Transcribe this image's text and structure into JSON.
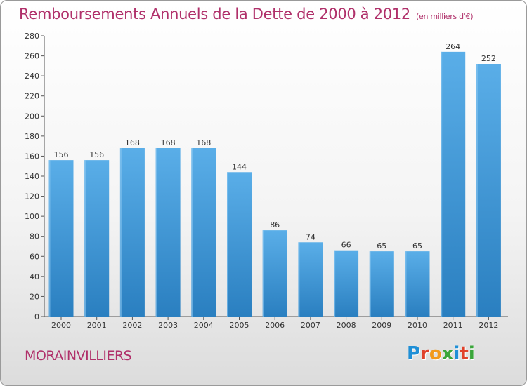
{
  "header": {
    "title": "Remboursements Annuels de la Dette de 2000 à 2012",
    "subtitle": "(en milliers d'€)"
  },
  "footer": {
    "commune": "MORAINVILLIERS"
  },
  "logo": {
    "letters": [
      {
        "ch": "P",
        "color": "#1f8fd6"
      },
      {
        "ch": "r",
        "color": "#e0412b"
      },
      {
        "ch": "o",
        "color": "#f29a1a"
      },
      {
        "ch": "x",
        "color": "#3aa63a"
      },
      {
        "ch": "i",
        "color": "#1f8fd6"
      },
      {
        "ch": "t",
        "color": "#e0412b"
      },
      {
        "ch": "i",
        "color": "#3aa63a"
      }
    ]
  },
  "colors": {
    "title": "#b0306a",
    "bar_top": "#5aaee8",
    "bar_bottom": "#2a7fc0"
  },
  "chart_data": {
    "type": "bar",
    "title": "Remboursements Annuels de la Dette de 2000 à 2012",
    "subtitle": "(en milliers d'€)",
    "xlabel": "",
    "ylabel": "",
    "categories": [
      "2000",
      "2001",
      "2002",
      "2003",
      "2004",
      "2005",
      "2006",
      "2007",
      "2008",
      "2009",
      "2010",
      "2011",
      "2012"
    ],
    "values": [
      156,
      156,
      168,
      168,
      168,
      144,
      86,
      74,
      66,
      65,
      65,
      264,
      252
    ],
    "ylim": [
      0,
      280
    ],
    "yticks": [
      0,
      20,
      40,
      60,
      80,
      100,
      120,
      140,
      160,
      180,
      200,
      220,
      240,
      260,
      280
    ],
    "grid": false,
    "data_labels": true
  }
}
